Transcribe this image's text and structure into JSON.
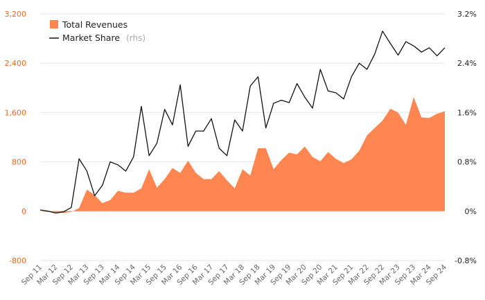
{
  "chart_data": {
    "type": "area",
    "title": "",
    "xlabel": "",
    "ylabel": "",
    "ylim": [
      -800,
      3200
    ],
    "y2lim": [
      -0.8,
      3.2
    ],
    "y_ticks": [
      "-800",
      "0",
      "800",
      "1,600",
      "2,400",
      "3,200"
    ],
    "y2_ticks": [
      "-0.8%",
      "0%",
      "0.8%",
      "1.6%",
      "2.4%",
      "3.2%"
    ],
    "x_tick_labels": [
      "Sep 11",
      "Mar 12",
      "Sep 12",
      "Mar 13",
      "Sep 13",
      "Mar 14",
      "Sep 14",
      "Mar 15",
      "Sep 15",
      "Mar 16",
      "Sep 16",
      "Mar 17",
      "Sep 17",
      "Mar 18",
      "Sep 18",
      "Mar 19",
      "Sep 19",
      "Mar 20",
      "Sep 20",
      "Mar 21",
      "Sep 21",
      "Mar 22",
      "Sep 22",
      "Mar 23",
      "Sep 23",
      "Mar 24",
      "Sep 24"
    ],
    "quarters": 53,
    "series": [
      {
        "name": "Total Revenues",
        "axis": "left",
        "kind": "area",
        "color": "#ff8650",
        "values": [
          0,
          -10,
          -20,
          -30,
          -10,
          50,
          350,
          260,
          130,
          180,
          330,
          300,
          300,
          370,
          680,
          380,
          520,
          700,
          620,
          820,
          620,
          520,
          520,
          650,
          500,
          370,
          680,
          580,
          1020,
          1020,
          680,
          830,
          950,
          920,
          1050,
          880,
          810,
          960,
          850,
          780,
          840,
          980,
          1230,
          1350,
          1470,
          1660,
          1600,
          1400,
          1850,
          1520,
          1510,
          1580,
          1620
        ]
      },
      {
        "name": "Market Share",
        "note": "(rhs)",
        "axis": "right",
        "kind": "line",
        "color": "#111111",
        "values": [
          0.02,
          0.0,
          -0.03,
          -0.01,
          0.06,
          0.85,
          0.65,
          0.25,
          0.42,
          0.8,
          0.75,
          0.65,
          0.88,
          1.7,
          0.9,
          1.1,
          1.65,
          1.4,
          2.05,
          1.05,
          1.3,
          1.3,
          1.5,
          1.02,
          0.9,
          1.48,
          1.3,
          2.03,
          2.18,
          1.35,
          1.75,
          1.8,
          1.76,
          2.07,
          1.85,
          1.67,
          2.3,
          1.95,
          1.92,
          1.82,
          2.18,
          2.4,
          2.3,
          2.55,
          2.92,
          2.72,
          2.53,
          2.75,
          2.68,
          2.58,
          2.65,
          2.52,
          2.65
        ]
      }
    ],
    "legend": {
      "position": "top-left"
    },
    "colors": {
      "left_axis": "#f26722",
      "right_axis": "#222222",
      "grid": "#e6e6e6"
    }
  }
}
